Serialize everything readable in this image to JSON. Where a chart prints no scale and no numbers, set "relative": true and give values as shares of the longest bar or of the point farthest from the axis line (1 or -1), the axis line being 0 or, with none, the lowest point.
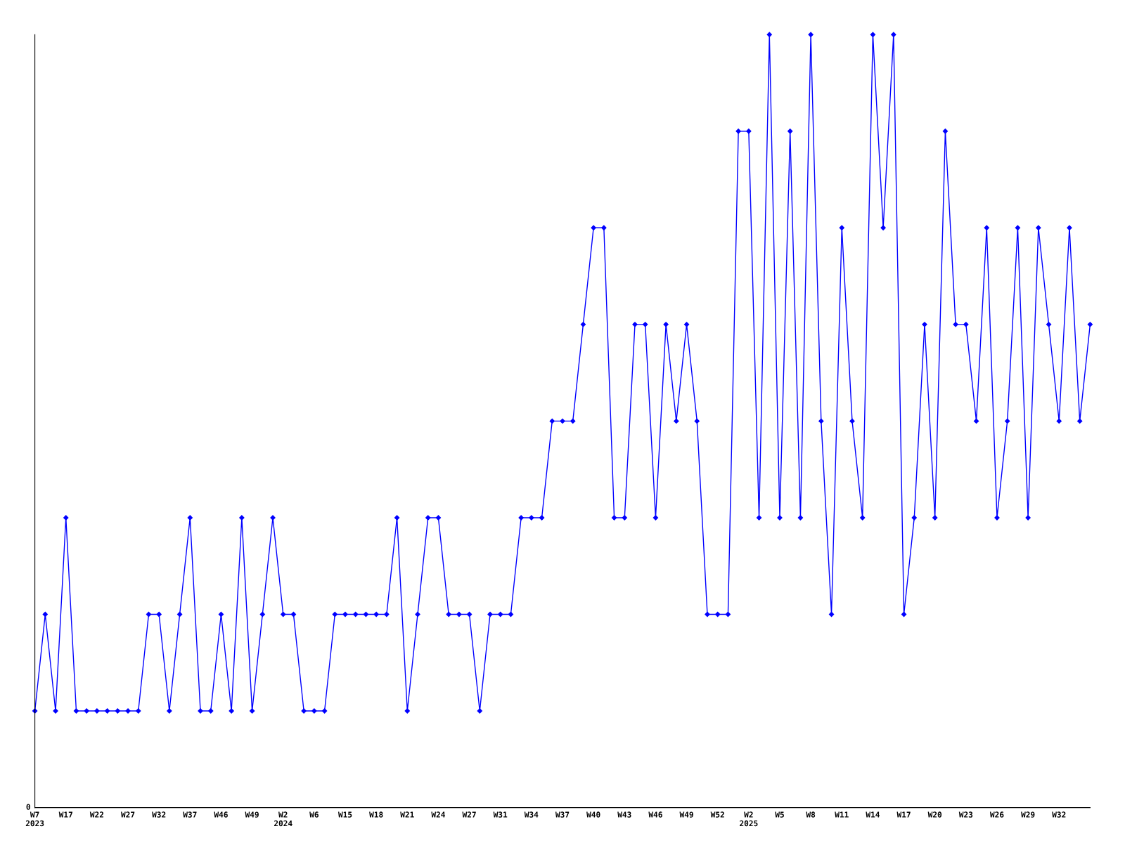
{
  "chart_data": {
    "type": "line",
    "relative": true,
    "color": "#0000ff",
    "marker": "diamond",
    "line_style": "solid",
    "grid": false,
    "legend": false,
    "annotations": [
      "0"
    ],
    "categories": [
      "W7\n2023",
      null,
      null,
      "W17",
      null,
      null,
      "W22",
      null,
      null,
      "W27",
      null,
      null,
      "W32",
      null,
      null,
      "W37",
      null,
      null,
      "W46",
      null,
      null,
      "W49",
      null,
      null,
      "W2\n2024",
      null,
      null,
      "W6",
      null,
      null,
      "W15",
      null,
      null,
      "W18",
      null,
      null,
      "W21",
      null,
      null,
      "W24",
      null,
      null,
      "W27",
      null,
      null,
      "W31",
      null,
      null,
      "W34",
      null,
      null,
      "W37",
      null,
      null,
      "W40",
      null,
      null,
      "W43",
      null,
      null,
      "W46",
      null,
      null,
      "W49",
      null,
      null,
      "W52",
      null,
      null,
      "W2\n2025",
      null,
      null,
      "W5",
      null,
      null,
      "W8",
      null,
      null,
      "W11",
      null,
      null,
      "W14",
      null,
      null,
      "W17",
      null,
      null,
      "W20",
      null,
      null,
      "W23",
      null,
      null,
      "W26",
      null,
      null,
      "W29",
      null,
      null,
      "W32",
      null,
      null,
      null
    ],
    "values": [
      0.125,
      0.25,
      0.125,
      0.375,
      0.125,
      0.125,
      0.125,
      0.125,
      0.125,
      0.125,
      0.125,
      0.25,
      0.25,
      0.125,
      0.25,
      0.375,
      0.125,
      0.125,
      0.25,
      0.125,
      0.375,
      0.125,
      0.25,
      0.375,
      0.25,
      0.25,
      0.125,
      0.125,
      0.125,
      0.25,
      0.25,
      0.25,
      0.25,
      0.25,
      0.25,
      0.375,
      0.125,
      0.25,
      0.375,
      0.375,
      0.25,
      0.25,
      0.25,
      0.125,
      0.25,
      0.25,
      0.25,
      0.375,
      0.375,
      0.375,
      0.5,
      0.5,
      0.5,
      0.625,
      0.75,
      0.75,
      0.375,
      0.375,
      0.625,
      0.625,
      0.375,
      0.625,
      0.5,
      0.625,
      0.5,
      0.25,
      0.25,
      0.25,
      0.875,
      0.875,
      0.375,
      1,
      0.375,
      0.875,
      0.375,
      1,
      0.5,
      0.25,
      0.75,
      0.5,
      0.375,
      1,
      0.75,
      1,
      0.25,
      0.375,
      0.625,
      0.375,
      0.875,
      0.625,
      0.625,
      0.5,
      0.75,
      0.375,
      0.5,
      0.75,
      0.375,
      0.75,
      0.625,
      0.5,
      0.75,
      0.5,
      0.625
    ]
  }
}
